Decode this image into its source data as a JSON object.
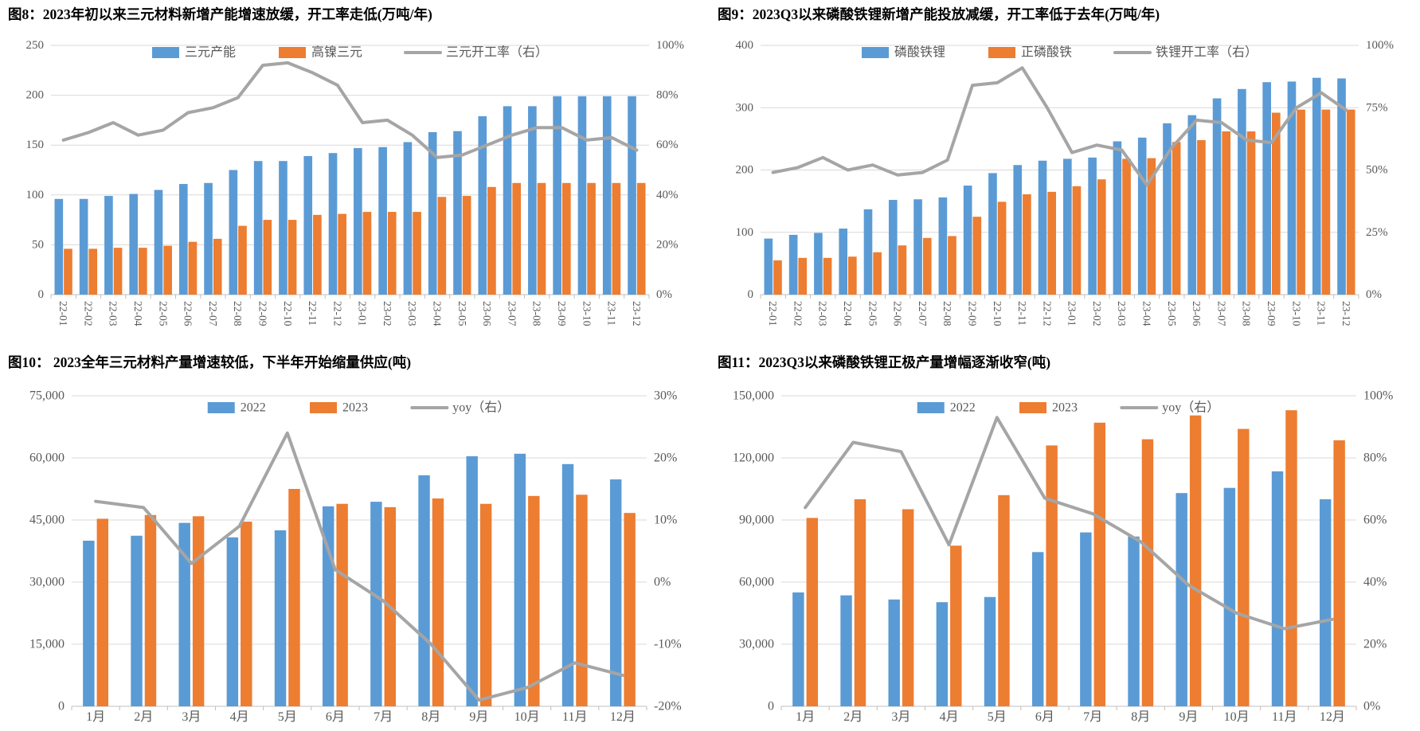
{
  "colors": {
    "bar_blue": "#5B9BD5",
    "bar_orange": "#ED7D31",
    "line_gray": "#A5A5A5",
    "grid": "#D9D9D9",
    "axis_line": "#BFBFBF",
    "tick_text": "#595959",
    "legend_text": "#595959",
    "title_text": "#000000",
    "background": "#FFFFFF"
  },
  "chart_data": [
    {
      "id": "fig8",
      "type": "bar+line",
      "title": "图8：2023年初以来三元材料新增产能增速放缓，开工率走低(万吨/年)",
      "categories": [
        "22-01",
        "22-02",
        "22-03",
        "22-04",
        "22-05",
        "22-06",
        "22-07",
        "22-08",
        "22-09",
        "22-10",
        "22-11",
        "22-12",
        "23-01",
        "23-02",
        "23-03",
        "23-04",
        "23-05",
        "23-06",
        "23-07",
        "23-08",
        "23-09",
        "23-10",
        "23-11",
        "23-12"
      ],
      "series": [
        {
          "name": "三元产能",
          "type": "bar",
          "color": "bar_blue",
          "axis": "left",
          "values": [
            96,
            96,
            99,
            101,
            105,
            111,
            112,
            125,
            134,
            134,
            139,
            142,
            147,
            148,
            153,
            163,
            164,
            179,
            189,
            189,
            199,
            199,
            199,
            199
          ]
        },
        {
          "name": "高镍三元",
          "type": "bar",
          "color": "bar_orange",
          "axis": "left",
          "values": [
            46,
            46,
            47,
            47,
            49,
            53,
            56,
            69,
            75,
            75,
            80,
            81,
            83,
            83,
            83,
            98,
            99,
            108,
            112,
            112,
            112,
            112,
            112,
            112
          ]
        },
        {
          "name": "三元开工率（右）",
          "type": "line",
          "color": "line_gray",
          "axis": "right",
          "values": [
            62,
            65,
            69,
            64,
            66,
            73,
            75,
            79,
            92,
            93,
            89,
            84,
            69,
            70,
            64,
            55,
            56,
            60,
            64,
            67,
            67,
            62,
            63,
            58
          ]
        }
      ],
      "left_axis": {
        "min": 0,
        "max": 250,
        "labels": [
          "0",
          "50",
          "100",
          "150",
          "200",
          "250"
        ]
      },
      "right_axis": {
        "min": 0,
        "max": 100,
        "labels": [
          "0%",
          "20%",
          "40%",
          "60%",
          "80%",
          "100%"
        ]
      },
      "x_labels_rotated": true,
      "legend_position": "top-center",
      "grid": true
    },
    {
      "id": "fig9",
      "type": "bar+line",
      "title": "图9：2023Q3以来磷酸铁锂新增产能投放减缓，开工率低于去年(万吨/年)",
      "categories": [
        "22-01",
        "22-02",
        "22-03",
        "22-04",
        "22-05",
        "22-06",
        "22-07",
        "22-08",
        "22-09",
        "22-10",
        "22-11",
        "22-12",
        "23-01",
        "23-02",
        "23-03",
        "23-04",
        "23-05",
        "23-06",
        "23-07",
        "23-08",
        "23-09",
        "23-10",
        "23-11",
        "23-12"
      ],
      "series": [
        {
          "name": "磷酸铁锂",
          "type": "bar",
          "color": "bar_blue",
          "axis": "left",
          "values": [
            90,
            96,
            99,
            106,
            137,
            152,
            153,
            156,
            175,
            195,
            208,
            215,
            218,
            220,
            246,
            252,
            275,
            288,
            315,
            330,
            341,
            342,
            348,
            347
          ]
        },
        {
          "name": "正磷酸铁",
          "type": "bar",
          "color": "bar_orange",
          "axis": "left",
          "values": [
            55,
            59,
            59,
            61,
            68,
            79,
            91,
            94,
            125,
            149,
            161,
            165,
            174,
            185,
            218,
            219,
            245,
            248,
            262,
            262,
            292,
            297,
            297,
            297
          ]
        },
        {
          "name": "铁锂开工率（右）",
          "type": "line",
          "color": "line_gray",
          "axis": "right",
          "values": [
            49,
            51,
            55,
            50,
            52,
            48,
            49,
            54,
            84,
            85,
            91,
            75,
            57,
            60,
            58,
            44,
            59,
            70,
            69,
            62,
            61,
            75,
            81,
            74
          ]
        }
      ],
      "left_axis": {
        "min": 0,
        "max": 400,
        "labels": [
          "0",
          "100",
          "200",
          "300",
          "400"
        ]
      },
      "right_axis": {
        "min": 0,
        "max": 100,
        "labels": [
          "0%",
          "25%",
          "50%",
          "75%",
          "100%"
        ]
      },
      "x_labels_rotated": true,
      "legend_position": "top-center",
      "grid": true
    },
    {
      "id": "fig10",
      "type": "bar+line",
      "title": "图10： 2023全年三元材料产量增速较低，下半年开始缩量供应(吨)",
      "categories": [
        "1月",
        "2月",
        "3月",
        "4月",
        "5月",
        "6月",
        "7月",
        "8月",
        "9月",
        "10月",
        "11月",
        "12月"
      ],
      "series": [
        {
          "name": "2022",
          "type": "bar",
          "color": "bar_blue",
          "axis": "left",
          "values": [
            40000,
            41200,
            44300,
            40800,
            42500,
            48300,
            49400,
            55800,
            60400,
            61000,
            58500,
            54800
          ]
        },
        {
          "name": "2023",
          "type": "bar",
          "color": "bar_orange",
          "axis": "left",
          "values": [
            45300,
            46200,
            45900,
            44600,
            52500,
            48900,
            48100,
            50200,
            48900,
            50800,
            51100,
            46700
          ]
        },
        {
          "name": "yoy（右）",
          "type": "line",
          "color": "line_gray",
          "axis": "right",
          "values": [
            13,
            12,
            3,
            9,
            24,
            2,
            -3,
            -10,
            -19,
            -17,
            -13,
            -15
          ]
        }
      ],
      "left_axis": {
        "min": 0,
        "max": 75000,
        "labels": [
          "0",
          "15,000",
          "30,000",
          "45,000",
          "60,000",
          "75,000"
        ]
      },
      "right_axis": {
        "min": -20,
        "max": 30,
        "labels": [
          "-20%",
          "-10%",
          "0%",
          "10%",
          "20%",
          "30%"
        ]
      },
      "x_labels_rotated": false,
      "legend_position": "top-center",
      "grid": true
    },
    {
      "id": "fig11",
      "type": "bar+line",
      "title": "图11：2023Q3以来磷酸铁锂正极产量增幅逐渐收窄(吨)",
      "categories": [
        "1月",
        "2月",
        "3月",
        "4月",
        "5月",
        "6月",
        "7月",
        "8月",
        "9月",
        "10月",
        "11月",
        "12月"
      ],
      "series": [
        {
          "name": "2022",
          "type": "bar",
          "color": "bar_blue",
          "axis": "left",
          "values": [
            55000,
            53600,
            51600,
            50300,
            52800,
            74500,
            84000,
            82000,
            103000,
            105500,
            113500,
            100000
          ]
        },
        {
          "name": "2023",
          "type": "bar",
          "color": "bar_orange",
          "axis": "left",
          "values": [
            91000,
            100000,
            95200,
            77600,
            102000,
            126000,
            137000,
            129000,
            140500,
            134000,
            143000,
            128500
          ]
        },
        {
          "name": "yoy（右）",
          "type": "line",
          "color": "line_gray",
          "axis": "right",
          "values": [
            64,
            85,
            82,
            52,
            93,
            67,
            62,
            53,
            39,
            30,
            25,
            28
          ]
        }
      ],
      "left_axis": {
        "min": 0,
        "max": 150000,
        "labels": [
          "0",
          "30,000",
          "60,000",
          "90,000",
          "120,000",
          "150,000"
        ]
      },
      "right_axis": {
        "min": 0,
        "max": 100,
        "labels": [
          "0%",
          "20%",
          "40%",
          "60%",
          "80%",
          "100%"
        ]
      },
      "x_labels_rotated": false,
      "legend_position": "top-center",
      "grid": true
    }
  ]
}
